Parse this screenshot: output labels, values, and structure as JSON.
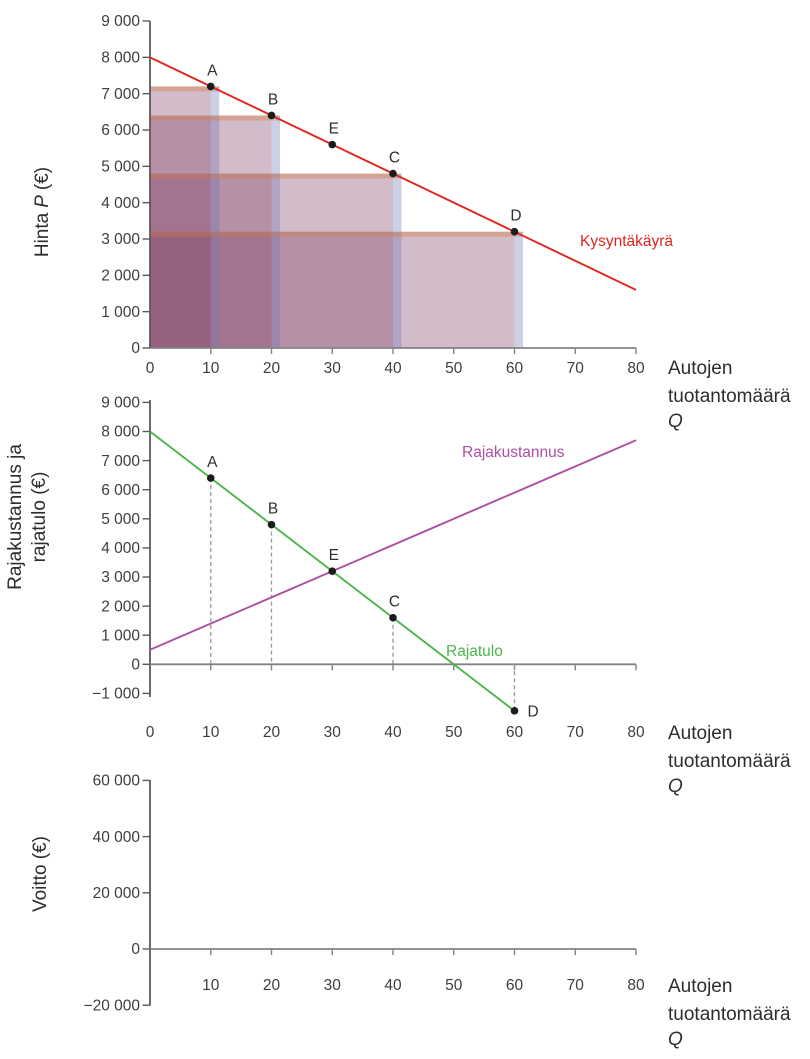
{
  "colors": {
    "demand": "#e0251d",
    "marginal_cost": "#ad4fa4",
    "marginal_revenue": "#4cb64c",
    "dot": "#1c1c1c",
    "axis": "#5a5a5a",
    "zero_line": "#838383",
    "tick_label": "#3e3e3e",
    "dashed_guide": "#999999",
    "rect_fill": "rgba(130,62,102,0.35)",
    "rect_top_edge": "rgba(210,123,58,0.38)",
    "rect_right_edge": "rgba(109,121,184,0.35)"
  },
  "titles": {
    "price_axis": {
      "pre": "Hinta",
      "italic": "P",
      "post": "(€)"
    },
    "marginal_axis": {
      "line1": "Rajakustannus ja",
      "line2": "rajatulo (€)"
    },
    "profit_axis": "Voitto (€)",
    "quantity_axis": {
      "line1": "Autojen",
      "line2": "tuotantomäärä",
      "italic": "Q"
    }
  },
  "chart_data": [
    {
      "name": "demand-chart",
      "type": "line",
      "title": "",
      "ylabel": "Hinta P (€)",
      "xlabel": "Autojen tuotantomäärä Q",
      "xlim": [
        0,
        80
      ],
      "ylim": [
        0,
        9000
      ],
      "x_ticks": [
        {
          "v": 0,
          "label": "0"
        },
        {
          "v": 10,
          "label": "10"
        },
        {
          "v": 20,
          "label": "20"
        },
        {
          "v": 30,
          "label": "30"
        },
        {
          "v": 40,
          "label": "40"
        },
        {
          "v": 50,
          "label": "50"
        },
        {
          "v": 60,
          "label": "60"
        },
        {
          "v": 70,
          "label": "70"
        },
        {
          "v": 80,
          "label": "80"
        }
      ],
      "y_ticks": [
        {
          "v": 9000,
          "label": "9 000"
        },
        {
          "v": 8000,
          "label": "8 000"
        },
        {
          "v": 7000,
          "label": "7 000"
        },
        {
          "v": 6000,
          "label": "6 000"
        },
        {
          "v": 5000,
          "label": "5 000"
        },
        {
          "v": 4000,
          "label": "4 000"
        },
        {
          "v": 3000,
          "label": "3 000"
        },
        {
          "v": 2000,
          "label": "2 000"
        },
        {
          "v": 1000,
          "label": "1 000"
        },
        {
          "v": 0,
          "label": "0"
        }
      ],
      "series": [
        {
          "name": "Kysyntäkäyrä",
          "color_key": "demand",
          "x": [
            0,
            80
          ],
          "y": [
            8000,
            1600
          ]
        }
      ],
      "points": [
        {
          "label": "A",
          "q": 10,
          "v": 7200
        },
        {
          "label": "B",
          "q": 20,
          "v": 6400
        },
        {
          "label": "E",
          "q": 30,
          "v": 5600
        },
        {
          "label": "C",
          "q": 40,
          "v": 4800
        },
        {
          "label": "D",
          "q": 60,
          "v": 3200
        }
      ],
      "revenue_rects": [
        {
          "point": "A",
          "q": 10,
          "p": 7200
        },
        {
          "point": "B",
          "q": 20,
          "p": 6400
        },
        {
          "point": "C",
          "q": 40,
          "p": 4800
        },
        {
          "point": "D",
          "q": 60,
          "p": 3200
        }
      ]
    },
    {
      "name": "marginal-chart",
      "type": "line",
      "title": "",
      "ylabel": "Rajakustannus ja rajatulo (€)",
      "xlabel": "Autojen tuotantomäärä Q",
      "xlim": [
        0,
        80
      ],
      "ylim": [
        -1000,
        9000
      ],
      "x_ticks": [
        {
          "v": 0,
          "label": "0"
        },
        {
          "v": 10,
          "label": "10"
        },
        {
          "v": 20,
          "label": "20"
        },
        {
          "v": 30,
          "label": "30"
        },
        {
          "v": 40,
          "label": "40"
        },
        {
          "v": 50,
          "label": "50"
        },
        {
          "v": 60,
          "label": "60"
        },
        {
          "v": 70,
          "label": "70"
        },
        {
          "v": 80,
          "label": "80"
        }
      ],
      "y_ticks": [
        {
          "v": 9000,
          "label": "9 000"
        },
        {
          "v": 8000,
          "label": "8 000"
        },
        {
          "v": 7000,
          "label": "7 000"
        },
        {
          "v": 6000,
          "label": "6 000"
        },
        {
          "v": 5000,
          "label": "5 000"
        },
        {
          "v": 4000,
          "label": "4 000"
        },
        {
          "v": 3000,
          "label": "3 000"
        },
        {
          "v": 2000,
          "label": "2 000"
        },
        {
          "v": 1000,
          "label": "1 000"
        },
        {
          "v": 0,
          "label": "0"
        },
        {
          "v": -1000,
          "label": "−1 000"
        }
      ],
      "series": [
        {
          "name": "Rajakustannus",
          "color_key": "marginal_cost",
          "x": [
            0,
            80
          ],
          "y": [
            500,
            7700
          ]
        },
        {
          "name": "Rajatulo",
          "color_key": "marginal_revenue",
          "x": [
            0,
            60
          ],
          "y": [
            8000,
            -1600
          ]
        }
      ],
      "points": [
        {
          "label": "A",
          "q": 10,
          "v": 6400
        },
        {
          "label": "B",
          "q": 20,
          "v": 4800
        },
        {
          "label": "E",
          "q": 30,
          "v": 3200
        },
        {
          "label": "C",
          "q": 40,
          "v": 1600
        },
        {
          "label": "D",
          "q": 60,
          "v": -1600,
          "side": "right"
        }
      ],
      "dashed_at_q": [
        10,
        20,
        40,
        60
      ]
    },
    {
      "name": "profit-chart",
      "type": "line",
      "title": "",
      "ylabel": "Voitto (€)",
      "xlabel": "Autojen tuotantomäärä Q",
      "xlim": [
        0,
        80
      ],
      "ylim": [
        -20000,
        60000
      ],
      "x_ticks": [
        {
          "v": 10,
          "label": "10"
        },
        {
          "v": 20,
          "label": "20"
        },
        {
          "v": 30,
          "label": "30"
        },
        {
          "v": 40,
          "label": "40"
        },
        {
          "v": 50,
          "label": "50"
        },
        {
          "v": 60,
          "label": "60"
        },
        {
          "v": 70,
          "label": "70"
        },
        {
          "v": 80,
          "label": "80"
        }
      ],
      "y_ticks": [
        {
          "v": 60000,
          "label": "60 000"
        },
        {
          "v": 40000,
          "label": "40 000"
        },
        {
          "v": 20000,
          "label": "20 000"
        },
        {
          "v": 0,
          "label": "0"
        },
        {
          "v": -20000,
          "label": "−20 000"
        }
      ],
      "series": [],
      "points": []
    }
  ]
}
